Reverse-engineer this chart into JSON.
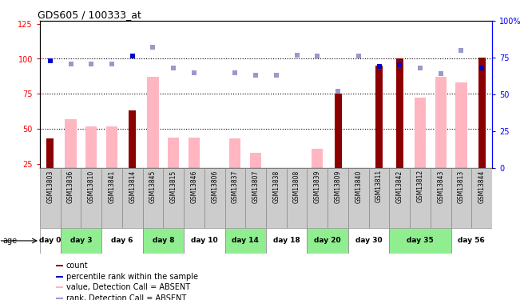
{
  "title": "GDS605 / 100333_at",
  "samples": [
    "GSM13803",
    "GSM13836",
    "GSM13810",
    "GSM13841",
    "GSM13814",
    "GSM13845",
    "GSM13815",
    "GSM13846",
    "GSM13806",
    "GSM13837",
    "GSM13807",
    "GSM13838",
    "GSM13808",
    "GSM13839",
    "GSM13809",
    "GSM13840",
    "GSM13811",
    "GSM13842",
    "GSM13812",
    "GSM13843",
    "GSM13813",
    "GSM13844"
  ],
  "count_values": [
    43,
    null,
    null,
    null,
    63,
    null,
    null,
    null,
    null,
    null,
    null,
    null,
    null,
    null,
    75,
    null,
    95,
    100,
    null,
    null,
    null,
    101
  ],
  "count_rank": [
    73,
    null,
    null,
    null,
    76,
    null,
    null,
    null,
    null,
    null,
    null,
    null,
    null,
    null,
    null,
    null,
    69,
    70,
    null,
    null,
    null,
    68
  ],
  "absent_value": [
    null,
    57,
    52,
    52,
    null,
    87,
    44,
    44,
    null,
    43,
    33,
    null,
    20,
    36,
    null,
    20,
    null,
    null,
    72,
    87,
    83,
    null
  ],
  "absent_rank": [
    null,
    71,
    71,
    71,
    null,
    82,
    68,
    65,
    null,
    65,
    63,
    63,
    77,
    76,
    52,
    76,
    null,
    null,
    68,
    64,
    80,
    null
  ],
  "day_groups": [
    {
      "label": "day 0",
      "start": 0,
      "end": 1,
      "green": false
    },
    {
      "label": "day 3",
      "start": 1,
      "end": 3,
      "green": true
    },
    {
      "label": "day 6",
      "start": 3,
      "end": 5,
      "green": false
    },
    {
      "label": "day 8",
      "start": 5,
      "end": 7,
      "green": true
    },
    {
      "label": "day 10",
      "start": 7,
      "end": 9,
      "green": false
    },
    {
      "label": "day 14",
      "start": 9,
      "end": 11,
      "green": true
    },
    {
      "label": "day 18",
      "start": 11,
      "end": 13,
      "green": false
    },
    {
      "label": "day 20",
      "start": 13,
      "end": 15,
      "green": true
    },
    {
      "label": "day 30",
      "start": 15,
      "end": 17,
      "green": false
    },
    {
      "label": "day 35",
      "start": 17,
      "end": 20,
      "green": true
    },
    {
      "label": "day 56",
      "start": 20,
      "end": 22,
      "green": false
    }
  ],
  "ylim_left": [
    22,
    127
  ],
  "ylim_right": [
    0,
    100
  ],
  "yticks_left": [
    25,
    50,
    75,
    100,
    125
  ],
  "yticks_right": [
    0,
    25,
    50,
    75,
    100
  ],
  "ytick_labels_right": [
    "0",
    "25",
    "50",
    "75",
    "100%"
  ],
  "count_color": "#8B0000",
  "rank_color": "#0000CC",
  "absent_value_color": "#FFB6C1",
  "absent_rank_color": "#9999CC",
  "sample_bg_color": "#cccccc",
  "green_color": "#90EE90",
  "white_color": "#ffffff",
  "legend_items": [
    {
      "label": "count",
      "color": "#8B0000"
    },
    {
      "label": "percentile rank within the sample",
      "color": "#0000CC"
    },
    {
      "label": "value, Detection Call = ABSENT",
      "color": "#FFB6C1"
    },
    {
      "label": "rank, Detection Call = ABSENT",
      "color": "#9999CC"
    }
  ]
}
